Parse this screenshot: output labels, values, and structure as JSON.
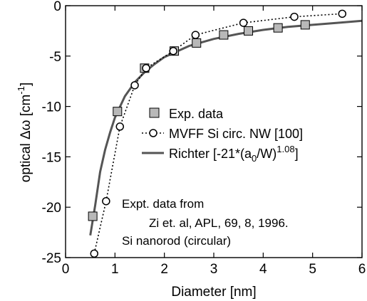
{
  "chart_data": {
    "type": "line",
    "xlabel": "Diameter [nm]",
    "ylabel_parts": {
      "pre": "optical Δω [cm",
      "sup": "-1",
      "post": "]"
    },
    "xlim": [
      0,
      6
    ],
    "ylim": [
      -25,
      0
    ],
    "xticks": [
      0,
      1,
      2,
      3,
      4,
      5,
      6
    ],
    "yticks": [
      0,
      -5,
      -10,
      -15,
      -20,
      -25
    ],
    "grid": false,
    "legend_position": "center-right",
    "series": [
      {
        "name": "Exp. data",
        "style": "markers",
        "marker": "square",
        "color": "#b8b8b8",
        "x": [
          0.55,
          1.05,
          1.6,
          2.2,
          2.65,
          3.2,
          3.7,
          4.3,
          4.85
        ],
        "y": [
          -20.9,
          -10.5,
          -6.2,
          -4.5,
          -3.7,
          -2.9,
          -2.5,
          -2.2,
          -1.9
        ]
      },
      {
        "name": "MVFF Si circ. NW [100]",
        "style": "dotted-line-markers",
        "marker": "circle",
        "color": "#000000",
        "x": [
          0.58,
          0.82,
          1.1,
          1.4,
          1.63,
          2.18,
          2.63,
          3.6,
          4.63,
          5.6
        ],
        "y": [
          -24.6,
          -19.4,
          -12.0,
          -7.9,
          -6.2,
          -4.5,
          -2.9,
          -1.7,
          -1.1,
          -0.8
        ]
      },
      {
        "name": "Richter",
        "label_parts": {
          "a": "Richter [-21*(a",
          "sub": "0",
          "b": "/W)",
          "sup": "1.08",
          "c": "]"
        },
        "style": "solid-line",
        "color": "#555555",
        "x": [
          0.5,
          0.6,
          0.7,
          0.8,
          0.9,
          1.0,
          1.2,
          1.4,
          1.6,
          1.8,
          2.0,
          2.5,
          3.0,
          3.5,
          4.0,
          4.5,
          5.0,
          5.5,
          6.0
        ],
        "y": [
          -22.8,
          -19.8,
          -16.5,
          -14.3,
          -12.6,
          -11.1,
          -9.0,
          -7.6,
          -6.6,
          -5.8,
          -5.1,
          -4.0,
          -3.3,
          -2.8,
          -2.4,
          -2.1,
          -1.9,
          -1.7,
          -1.5
        ]
      }
    ],
    "annotations": [
      "Expt. data from",
      "Zi et. al, APL, 69, 8, 1996.",
      "Si nanorod (circular)"
    ]
  }
}
